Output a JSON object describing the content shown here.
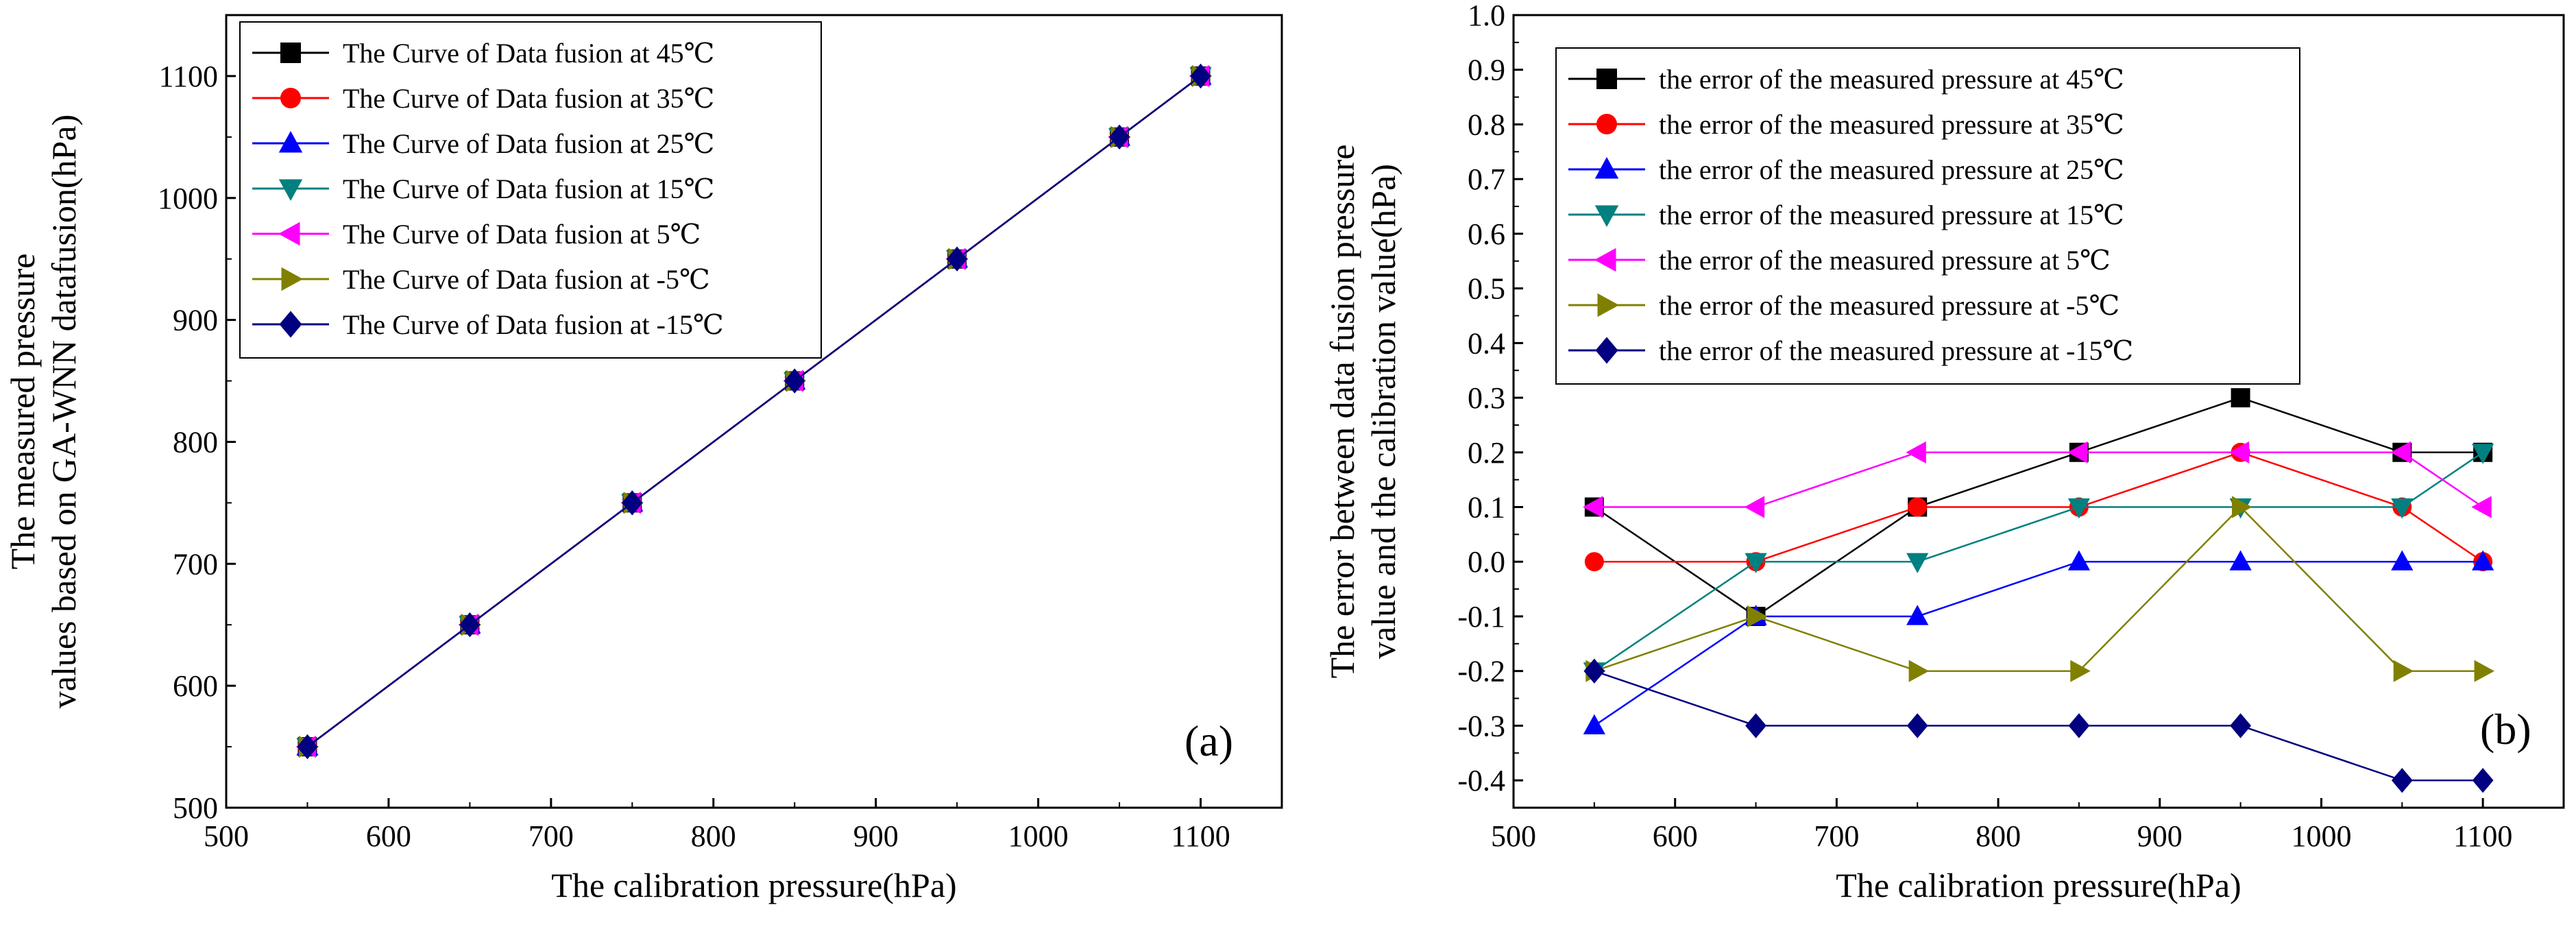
{
  "chart_data": [
    {
      "type": "line",
      "panel_label": "(a)",
      "xlabel": "The calibration pressure(hPa)",
      "ylabel_lines": [
        "The measured pressure",
        "values based on GA-WNN datafusion(hPa)"
      ],
      "xlim": [
        500,
        1150
      ],
      "ylim": [
        500,
        1150
      ],
      "xticks": [
        500,
        600,
        700,
        800,
        900,
        1000,
        1100
      ],
      "yticks": [
        500,
        600,
        700,
        800,
        900,
        1000,
        1100
      ],
      "xtick_labels": [
        "500",
        "600",
        "700",
        "800",
        "900",
        "1000",
        "1100"
      ],
      "ytick_labels": [
        "500",
        "600",
        "700",
        "800",
        "900",
        "1000",
        "1100"
      ],
      "legend_position": "top-left",
      "x": [
        550,
        650,
        750,
        850,
        950,
        1050,
        1100
      ],
      "series": [
        {
          "name": "The Curve of Data fusion at 45℃",
          "color": "#000000",
          "marker": "square",
          "values": [
            550,
            650,
            750,
            850,
            950,
            1050,
            1100
          ]
        },
        {
          "name": "The Curve of Data fusion at 35℃",
          "color": "#ff0000",
          "marker": "circle",
          "values": [
            550,
            650,
            750,
            850,
            950,
            1050,
            1100
          ]
        },
        {
          "name": "The Curve of Data fusion at 25℃",
          "color": "#0000ff",
          "marker": "triangle-up",
          "values": [
            550,
            650,
            750,
            850,
            950,
            1050,
            1100
          ]
        },
        {
          "name": "The Curve of Data fusion at 15℃",
          "color": "#008080",
          "marker": "triangle-down",
          "values": [
            550,
            650,
            750,
            850,
            950,
            1050,
            1100
          ]
        },
        {
          "name": "The Curve of Data fusion at 5℃",
          "color": "#ff00ff",
          "marker": "triangle-left",
          "values": [
            550,
            650,
            750,
            850,
            950,
            1050,
            1100
          ]
        },
        {
          "name": "The Curve of Data fusion at -5℃",
          "color": "#808000",
          "marker": "triangle-right",
          "values": [
            550,
            650,
            750,
            850,
            950,
            1050,
            1100
          ]
        },
        {
          "name": "The Curve of Data fusion at -15℃",
          "color": "#000080",
          "marker": "diamond",
          "values": [
            550,
            650,
            750,
            850,
            950,
            1050,
            1100
          ]
        }
      ]
    },
    {
      "type": "line",
      "panel_label": "(b)",
      "xlabel": "The calibration pressure(hPa)",
      "ylabel_lines": [
        "The error between data fusion pressure",
        "value and the calibration value(hPa)"
      ],
      "xlim": [
        500,
        1150
      ],
      "ylim": [
        -0.45,
        1.0
      ],
      "xticks": [
        500,
        600,
        700,
        800,
        900,
        1000,
        1100
      ],
      "yticks": [
        -0.4,
        -0.3,
        -0.2,
        -0.1,
        0.0,
        0.1,
        0.2,
        0.3,
        0.4,
        0.5,
        0.6,
        0.7,
        0.8,
        0.9,
        1.0
      ],
      "xtick_labels": [
        "500",
        "600",
        "700",
        "800",
        "900",
        "1000",
        "1100"
      ],
      "ytick_labels": [
        "-0.4",
        "-0.3",
        "-0.2",
        "-0.1",
        "0.0",
        "0.1",
        "0.2",
        "0.3",
        "0.4",
        "0.5",
        "0.6",
        "0.7",
        "0.8",
        "0.9",
        "1.0"
      ],
      "legend_position": "top-left",
      "x": [
        550,
        650,
        750,
        850,
        950,
        1050,
        1100
      ],
      "series": [
        {
          "name": "the error of the measured pressure at 45℃",
          "color": "#000000",
          "marker": "square",
          "values": [
            0.1,
            -0.1,
            0.1,
            0.2,
            0.3,
            0.2,
            0.2
          ]
        },
        {
          "name": "the error of the measured pressure at 35℃",
          "color": "#ff0000",
          "marker": "circle",
          "values": [
            0.0,
            0.0,
            0.1,
            0.1,
            0.2,
            0.1,
            0.0
          ]
        },
        {
          "name": "the error of the measured pressure at 25℃",
          "color": "#0000ff",
          "marker": "triangle-up",
          "values": [
            -0.3,
            -0.1,
            -0.1,
            0.0,
            0.0,
            0.0,
            0.0
          ]
        },
        {
          "name": "the error of the measured pressure at 15℃",
          "color": "#008080",
          "marker": "triangle-down",
          "values": [
            -0.2,
            0.0,
            0.0,
            0.1,
            0.1,
            0.1,
            0.2
          ]
        },
        {
          "name": "the error of the measured pressure at 5℃",
          "color": "#ff00ff",
          "marker": "triangle-left",
          "values": [
            0.1,
            0.1,
            0.2,
            0.2,
            0.2,
            0.2,
            0.1
          ]
        },
        {
          "name": "the error of the measured pressure at -5℃",
          "color": "#808000",
          "marker": "triangle-right",
          "values": [
            -0.2,
            -0.1,
            -0.2,
            -0.2,
            0.1,
            -0.2,
            -0.2
          ]
        },
        {
          "name": "the error of the measured pressure at -15℃",
          "color": "#000080",
          "marker": "diamond",
          "values": [
            -0.2,
            -0.3,
            -0.3,
            -0.3,
            -0.3,
            -0.4,
            -0.4
          ]
        }
      ]
    }
  ]
}
